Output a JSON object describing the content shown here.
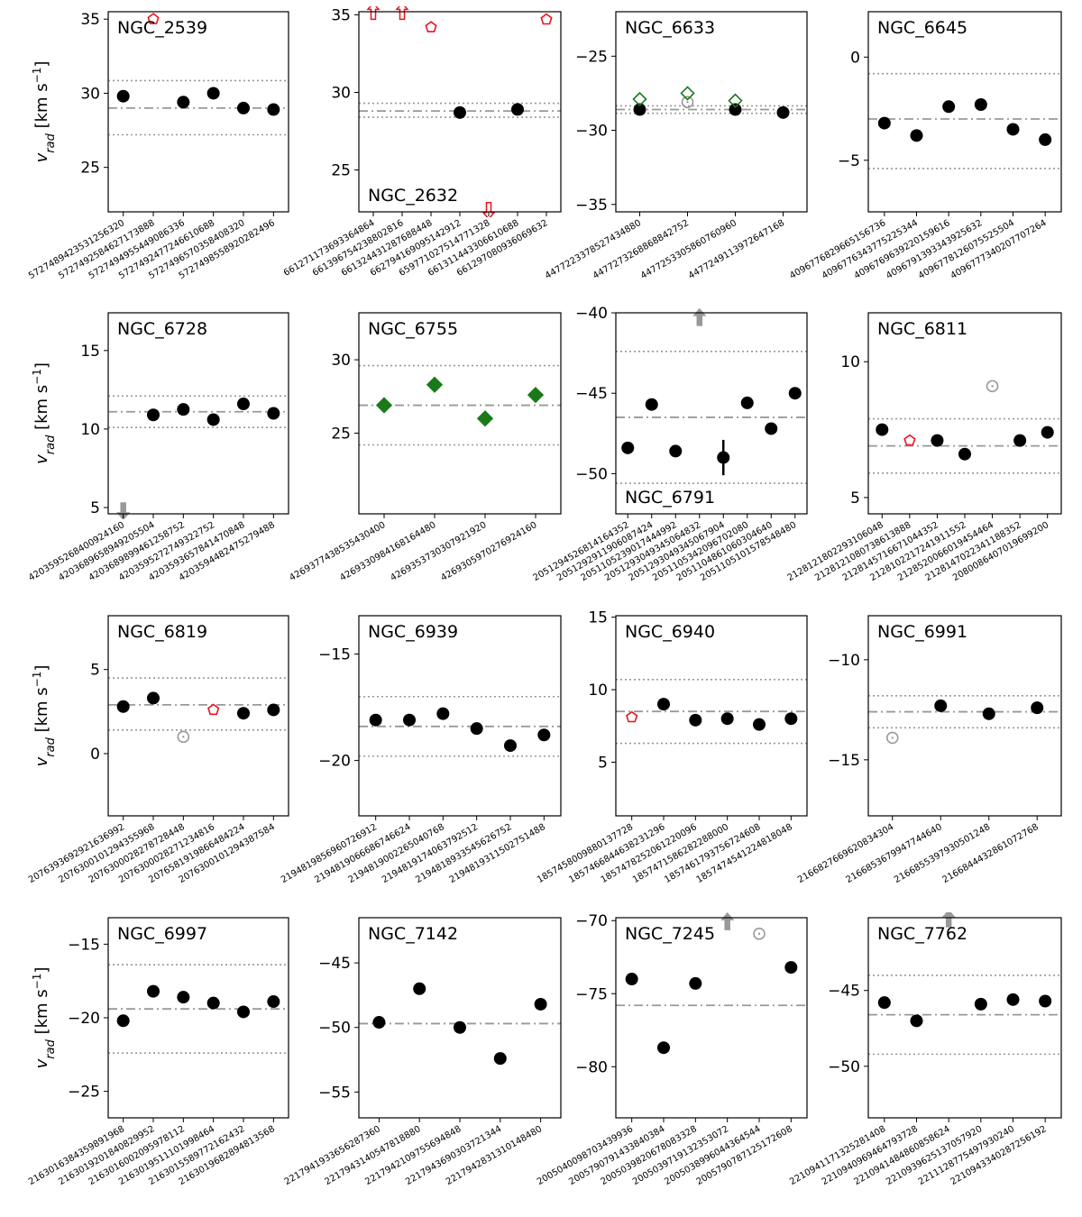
{
  "ylabel_main": "v",
  "ylabel_sub": "rad",
  "ylabel_units": " [km s",
  "ylabel_exp": "−1",
  "ylabel_close": "]",
  "colors": {
    "member": "#000000",
    "green": "#1a7a1a",
    "red": "#e8141e",
    "gray": "#999999",
    "line": "#999999"
  },
  "chart_data": [
    {
      "type": "scatter",
      "title": "NGC_2539",
      "title_pos": "top",
      "ylim": [
        22,
        35.5
      ],
      "yticks": [
        25,
        30,
        35
      ],
      "mean": 29.0,
      "band": [
        27.2,
        30.85
      ],
      "categories": [
        "5727489423531256320",
        "5727492584627173888",
        "5727494955449086336",
        "5727492477246610688",
        "5727496570358408320",
        "5727498558920282496"
      ],
      "points": [
        {
          "i": 0,
          "y": 29.8,
          "m": "dot"
        },
        {
          "i": 1,
          "y": 35.0,
          "m": "pent"
        },
        {
          "i": 2,
          "y": 29.4,
          "m": "dot"
        },
        {
          "i": 3,
          "y": 30.0,
          "m": "dot"
        },
        {
          "i": 4,
          "y": 29.0,
          "m": "dot"
        },
        {
          "i": 5,
          "y": 28.9,
          "m": "dot"
        }
      ]
    },
    {
      "type": "scatter",
      "title": "NGC_2632",
      "title_pos": "bottom",
      "ylim": [
        22.3,
        35.2
      ],
      "yticks": [
        25,
        30,
        35
      ],
      "mean": 28.8,
      "band": [
        28.4,
        29.3
      ],
      "categories": [
        "661271173693364864",
        "661396754238802816",
        "661324431287688448",
        "662794169095142912",
        "659771027514771328",
        "661311443306610688",
        "661297080936069632"
      ],
      "points": [
        {
          "i": 0,
          "y": 35.0,
          "m": "up_red"
        },
        {
          "i": 1,
          "y": 35.0,
          "m": "up_red"
        },
        {
          "i": 2,
          "y": 34.2,
          "m": "pent"
        },
        {
          "i": 3,
          "y": 28.7,
          "m": "dot"
        },
        {
          "i": 4,
          "y": 22.6,
          "m": "down_red"
        },
        {
          "i": 5,
          "y": 28.9,
          "m": "dot"
        },
        {
          "i": 6,
          "y": 34.7,
          "m": "pent"
        }
      ]
    },
    {
      "type": "scatter",
      "title": "NGC_6633",
      "title_pos": "top",
      "ylim": [
        -35.5,
        -22
      ],
      "yticks": [
        -35,
        -30,
        -25
      ],
      "mean": -28.6,
      "band": [
        -28.85,
        -28.35
      ],
      "categories": [
        "4477223378527434880",
        "4477273268868842752",
        "4477253305860760960",
        "4477249113972647168"
      ],
      "points": [
        {
          "i": 0,
          "y": -28.6,
          "m": "dot"
        },
        {
          "i": 0,
          "y": -27.9,
          "m": "gdiamond"
        },
        {
          "i": 1,
          "y": -28.1,
          "m": "gcirc"
        },
        {
          "i": 1,
          "y": -27.5,
          "m": "gdiamond"
        },
        {
          "i": 2,
          "y": -28.6,
          "m": "dot"
        },
        {
          "i": 2,
          "y": -28.0,
          "m": "gdiamond"
        },
        {
          "i": 3,
          "y": -28.8,
          "m": "dot"
        }
      ]
    },
    {
      "type": "scatter",
      "title": "NGC_6645",
      "title_pos": "top",
      "ylim": [
        -7.5,
        2.2
      ],
      "yticks": [
        -5,
        0
      ],
      "mean": -3.0,
      "band": [
        -5.4,
        -0.8
      ],
      "categories": [
        "4096776829665156736",
        "4096776343775225344",
        "4096769639220159616",
        "4096791393343925632",
        "4096778126075525504",
        "4096777340207707264"
      ],
      "points": [
        {
          "i": 0,
          "y": -3.2,
          "m": "dot"
        },
        {
          "i": 1,
          "y": -3.8,
          "m": "dot"
        },
        {
          "i": 2,
          "y": -2.4,
          "m": "dot"
        },
        {
          "i": 3,
          "y": -2.3,
          "m": "dot"
        },
        {
          "i": 4,
          "y": -3.5,
          "m": "dot"
        },
        {
          "i": 5,
          "y": -4.0,
          "m": "dot"
        }
      ]
    },
    {
      "type": "scatter",
      "title": "NGC_6728",
      "title_pos": "top",
      "ylim": [
        4.6,
        17.4
      ],
      "yticks": [
        5,
        10,
        15
      ],
      "mean": 11.1,
      "band": [
        10.1,
        12.1
      ],
      "categories": [
        "4203595268400924160",
        "4203689658949205504",
        "4203689899461258752",
        "4203595272749322752",
        "4203593657841470848",
        "4203594482475279488"
      ],
      "points": [
        {
          "i": 0,
          "y": 5.0,
          "m": "down_gray"
        },
        {
          "i": 1,
          "y": 10.9,
          "m": "dot"
        },
        {
          "i": 2,
          "y": 11.25,
          "m": "dot"
        },
        {
          "i": 3,
          "y": 10.6,
          "m": "dot"
        },
        {
          "i": 4,
          "y": 11.6,
          "m": "dot"
        },
        {
          "i": 5,
          "y": 11.0,
          "m": "dot"
        }
      ]
    },
    {
      "type": "scatter",
      "title": "NGC_6755",
      "title_pos": "top",
      "ylim": [
        19.5,
        33.2
      ],
      "yticks": [
        25,
        30
      ],
      "mean": 26.9,
      "band": [
        24.2,
        29.6
      ],
      "categories": [
        "4269377438535430400",
        "4269330984168164480",
        "4269353730307921920",
        "4269305970276924160"
      ],
      "points": [
        {
          "i": 0,
          "y": 26.9,
          "m": "gdiamond_f"
        },
        {
          "i": 1,
          "y": 28.3,
          "m": "gdiamond_f"
        },
        {
          "i": 2,
          "y": 26.0,
          "m": "gdiamond_f"
        },
        {
          "i": 3,
          "y": 27.6,
          "m": "gdiamond_f"
        }
      ]
    },
    {
      "type": "scatter",
      "title": "NGC_6791",
      "title_pos": "bottom",
      "ylim": [
        -52.5,
        -40
      ],
      "yticks": [
        -50,
        -45,
        -40
      ],
      "mean": -46.5,
      "band": [
        -50.6,
        -42.4
      ],
      "categories": [
        "2051294526814164352",
        "2051292911906087424",
        "2051105239017444992",
        "2051293049345064832",
        "2051293049345067904",
        "2051105342096702080",
        "2051104861060304640",
        "2051105101578548480"
      ],
      "points": [
        {
          "i": 0,
          "y": -48.4,
          "m": "dot"
        },
        {
          "i": 1,
          "y": -45.7,
          "m": "dot"
        },
        {
          "i": 2,
          "y": -48.6,
          "m": "dot"
        },
        {
          "i": 3,
          "y": -40.5,
          "m": "up_gray"
        },
        {
          "i": 4,
          "y": -49.0,
          "m": "dot",
          "err": 1.1
        },
        {
          "i": 5,
          "y": -45.6,
          "m": "dot"
        },
        {
          "i": 6,
          "y": -47.2,
          "m": "dot"
        },
        {
          "i": 7,
          "y": -45.0,
          "m": "dot"
        }
      ]
    },
    {
      "type": "scatter",
      "title": "NGC_6811",
      "title_pos": "top",
      "ylim": [
        4.4,
        11.8
      ],
      "yticks": [
        5,
        10
      ],
      "mean": 6.9,
      "band": [
        5.9,
        7.9
      ],
      "categories": [
        "2128121802293106048",
        "2128121080738613888",
        "2128145716671044352",
        "2128102217241911552",
        "2128520066019454464",
        "2128147022341188352",
        "2080086407019699200"
      ],
      "points": [
        {
          "i": 0,
          "y": 7.5,
          "m": "dot"
        },
        {
          "i": 1,
          "y": 7.1,
          "m": "pent"
        },
        {
          "i": 2,
          "y": 7.1,
          "m": "dot"
        },
        {
          "i": 3,
          "y": 6.6,
          "m": "dot"
        },
        {
          "i": 4,
          "y": 9.1,
          "m": "gcirc"
        },
        {
          "i": 5,
          "y": 7.1,
          "m": "dot"
        },
        {
          "i": 6,
          "y": 7.4,
          "m": "dot"
        }
      ]
    },
    {
      "type": "scatter",
      "title": "NGC_6819",
      "title_pos": "top",
      "ylim": [
        -3.7,
        8.2
      ],
      "yticks": [
        0,
        5
      ],
      "mean": 2.9,
      "band": [
        1.4,
        4.5
      ],
      "categories": [
        "2076393692921636992",
        "2076300101294355968",
        "2076300028278728448",
        "2076300028271234816",
        "2076581919866484224",
        "2076300101294387584"
      ],
      "points": [
        {
          "i": 0,
          "y": 2.8,
          "m": "dot"
        },
        {
          "i": 1,
          "y": 3.3,
          "m": "dot"
        },
        {
          "i": 2,
          "y": 1.0,
          "m": "gcirc"
        },
        {
          "i": 3,
          "y": 2.6,
          "m": "pent"
        },
        {
          "i": 4,
          "y": 2.4,
          "m": "dot"
        },
        {
          "i": 5,
          "y": 2.6,
          "m": "dot"
        }
      ]
    },
    {
      "type": "scatter",
      "title": "NGC_6939",
      "title_pos": "top",
      "ylim": [
        -22.6,
        -13.2
      ],
      "yticks": [
        -20,
        -15
      ],
      "mean": -18.4,
      "band": [
        -19.8,
        -17.0
      ],
      "categories": [
        "2194819856960726912",
        "2194819066686746624",
        "2194819002265040768",
        "2194819174063792512",
        "2194818933545626752",
        "2194819311502751488"
      ],
      "points": [
        {
          "i": 0,
          "y": -18.1,
          "m": "dot"
        },
        {
          "i": 1,
          "y": -18.1,
          "m": "dot"
        },
        {
          "i": 2,
          "y": -17.8,
          "m": "dot"
        },
        {
          "i": 3,
          "y": -18.5,
          "m": "dot"
        },
        {
          "i": 4,
          "y": -19.3,
          "m": "dot"
        },
        {
          "i": 5,
          "y": -18.8,
          "m": "dot"
        }
      ]
    },
    {
      "type": "scatter",
      "title": "NGC_6940",
      "title_pos": "top",
      "ylim": [
        1.3,
        15.1
      ],
      "yticks": [
        5,
        10,
        15
      ],
      "mean": 8.5,
      "band": [
        6.3,
        10.7
      ],
      "categories": [
        "1857458009880137728",
        "1857466844638231296",
        "1857478252061220096",
        "1857471586282288000",
        "1857461793756724608",
        "1857474541224818048"
      ],
      "points": [
        {
          "i": 0,
          "y": 8.1,
          "m": "pent"
        },
        {
          "i": 1,
          "y": 9.0,
          "m": "dot"
        },
        {
          "i": 2,
          "y": 7.9,
          "m": "dot"
        },
        {
          "i": 3,
          "y": 8.0,
          "m": "dot"
        },
        {
          "i": 4,
          "y": 7.6,
          "m": "dot"
        },
        {
          "i": 5,
          "y": 8.0,
          "m": "dot"
        }
      ]
    },
    {
      "type": "scatter",
      "title": "NGC_6991",
      "title_pos": "top",
      "ylim": [
        -17.8,
        -7.8
      ],
      "yticks": [
        -15,
        -10
      ],
      "mean": -12.6,
      "band": [
        -13.4,
        -11.8
      ],
      "categories": [
        "2166827669620834304",
        "2166853679947744640",
        "2166855397930501248",
        "2166844432861072768"
      ],
      "points": [
        {
          "i": 0,
          "y": -13.9,
          "m": "gcirc"
        },
        {
          "i": 1,
          "y": -12.3,
          "m": "dot"
        },
        {
          "i": 2,
          "y": -12.7,
          "m": "dot"
        },
        {
          "i": 3,
          "y": -12.4,
          "m": "dot"
        }
      ]
    },
    {
      "type": "scatter",
      "title": "NGC_6997",
      "title_pos": "top",
      "ylim": [
        -26.8,
        -13.2
      ],
      "yticks": [
        -25,
        -20,
        -15
      ],
      "mean": -19.4,
      "band": [
        -22.4,
        -16.4
      ],
      "categories": [
        "2163016384359891968",
        "2163019201840829952",
        "2163016002095978112",
        "2163019511101998464",
        "2163015589772162432",
        "2163019682894813568"
      ],
      "points": [
        {
          "i": 0,
          "y": -20.2,
          "m": "dot"
        },
        {
          "i": 1,
          "y": -18.2,
          "m": "dot"
        },
        {
          "i": 2,
          "y": -18.6,
          "m": "dot"
        },
        {
          "i": 3,
          "y": -19.0,
          "m": "dot"
        },
        {
          "i": 4,
          "y": -19.6,
          "m": "dot"
        },
        {
          "i": 5,
          "y": -18.9,
          "m": "dot"
        }
      ]
    },
    {
      "type": "scatter",
      "title": "NGC_7142",
      "title_pos": "top",
      "ylim": [
        -57,
        -41.5
      ],
      "yticks": [
        -55,
        -50,
        -45
      ],
      "mean": -49.7,
      "band": null,
      "categories": [
        "2217941933656287360",
        "2217943140547818880",
        "2217942109755694848",
        "2217943690303721344",
        "2217942831310148480"
      ],
      "points": [
        {
          "i": 0,
          "y": -49.6,
          "m": "dot"
        },
        {
          "i": 1,
          "y": -47.0,
          "m": "dot"
        },
        {
          "i": 2,
          "y": -50.0,
          "m": "dot"
        },
        {
          "i": 3,
          "y": -52.4,
          "m": "dot"
        },
        {
          "i": 4,
          "y": -48.2,
          "m": "dot"
        }
      ]
    },
    {
      "type": "scatter",
      "title": "NGC_7245",
      "title_pos": "top",
      "ylim": [
        -83.5,
        -69.8
      ],
      "yticks": [
        -80,
        -75,
        -70
      ],
      "mean": -75.8,
      "band": null,
      "categories": [
        "2005040098703439936",
        "2005790791433840384",
        "2005039820678083328",
        "2005039719132353072",
        "2005038996044364544",
        "2005790787125172608"
      ],
      "points": [
        {
          "i": 0,
          "y": -74.0,
          "m": "dot"
        },
        {
          "i": 1,
          "y": -78.7,
          "m": "dot"
        },
        {
          "i": 2,
          "y": -74.3,
          "m": "dot"
        },
        {
          "i": 3,
          "y": -70.3,
          "m": "up_gray"
        },
        {
          "i": 4,
          "y": -70.9,
          "m": "gcirc"
        },
        {
          "i": 5,
          "y": -73.2,
          "m": "dot"
        }
      ]
    },
    {
      "type": "scatter",
      "title": "NGC_7762",
      "title_pos": "top",
      "ylim": [
        -53.4,
        -40.2
      ],
      "yticks": [
        -50,
        -45
      ],
      "mean": -46.6,
      "band": [
        -49.2,
        -44.0
      ],
      "categories": [
        "2210941171325281408",
        "2210940969464793728",
        "2210941484860858624",
        "2210939625137057920",
        "2211128775497930240",
        "2210943340287256192"
      ],
      "points": [
        {
          "i": 0,
          "y": -45.8,
          "m": "dot"
        },
        {
          "i": 1,
          "y": -47.0,
          "m": "dot"
        },
        {
          "i": 2,
          "y": -40.5,
          "m": "up_gray"
        },
        {
          "i": 3,
          "y": -45.9,
          "m": "dot"
        },
        {
          "i": 4,
          "y": -45.6,
          "m": "dot"
        },
        {
          "i": 5,
          "y": -45.7,
          "m": "dot"
        }
      ]
    }
  ]
}
